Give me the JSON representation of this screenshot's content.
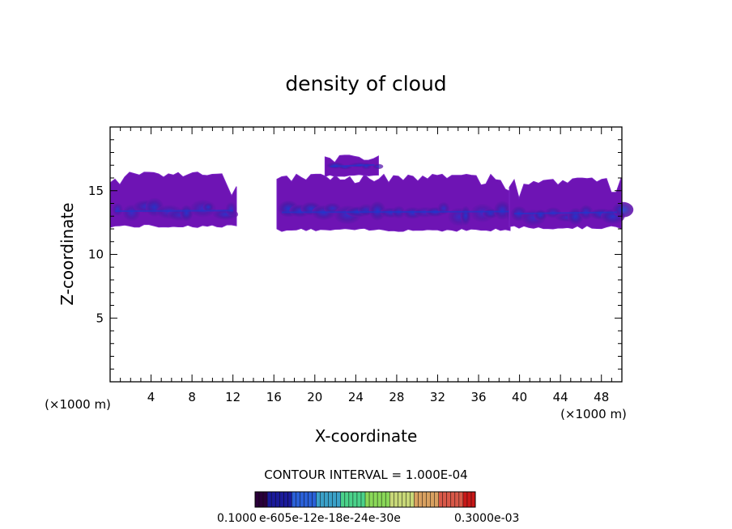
{
  "chart_data": {
    "type": "heatmap",
    "title": "density of cloud",
    "xlabel": "X-coordinate",
    "ylabel": "Z-coordinate",
    "x_unit": "(×1000 m)",
    "xlim": [
      0,
      50
    ],
    "ylim": [
      0,
      20
    ],
    "x_ticks": [
      4,
      8,
      12,
      16,
      20,
      24,
      28,
      32,
      36,
      40,
      44,
      48
    ],
    "y_ticks": [
      5,
      10,
      15
    ],
    "contour_interval": "CONTOUR INTERVAL = 1.000E-04",
    "colorbar": {
      "min_label": "0.1000",
      "overlapping_labels": "0.6000e-04 0.1200e-03 0.1800e-03 0.2400e-03 0.3000e-03",
      "overlapping_text": "e-605e-12e-18e-24e-30e",
      "max_label": "0.3000e-03",
      "colors": [
        "#2a003a",
        "#1a1a9a",
        "#2a60d8",
        "#3aa0c8",
        "#4ad28a",
        "#8ad858",
        "#c8d878",
        "#d8a060",
        "#d85848",
        "#c81818"
      ]
    },
    "regions": [
      {
        "name": "cloud-left",
        "x_range": [
          0,
          12.5
        ],
        "z_range": [
          12.1,
          16.5
        ],
        "core_z": 13.4
      },
      {
        "name": "cloud-center",
        "x_range": [
          16.3,
          39.5
        ],
        "z_range": [
          11.8,
          16.3
        ],
        "core_z": 13.3
      },
      {
        "name": "cloud-top-puff",
        "x_range": [
          21.0,
          26.3
        ],
        "z_range": [
          16.1,
          17.8
        ],
        "core_z": 16.9
      },
      {
        "name": "cloud-right",
        "x_range": [
          39.0,
          50
        ],
        "z_range": [
          12.0,
          16.0
        ],
        "core_z": 13.2
      }
    ]
  }
}
